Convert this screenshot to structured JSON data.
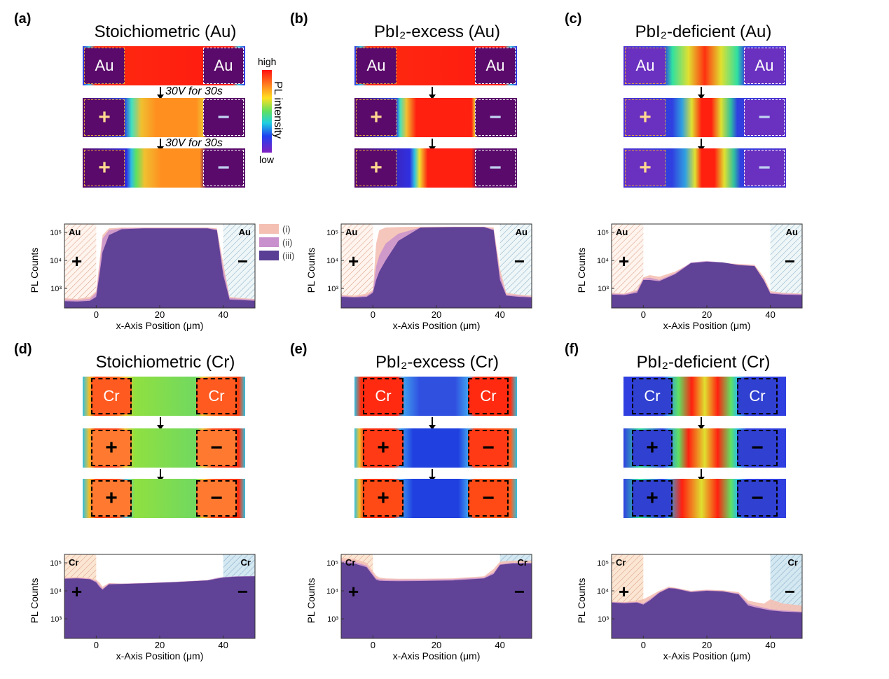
{
  "panels": [
    {
      "id": "a",
      "label": "(a)",
      "title": "Stoichiometric (Au)",
      "electrode": "Au",
      "type": "au",
      "profile": "stoich_au"
    },
    {
      "id": "b",
      "label": "(b)",
      "title": "PbI₂-excess (Au)",
      "electrode": "Au",
      "type": "au",
      "profile": "excess_au"
    },
    {
      "id": "c",
      "label": "(c)",
      "title": "PbI₂-deficient (Au)",
      "electrode": "Au",
      "type": "au",
      "profile": "def_au"
    },
    {
      "id": "d",
      "label": "(d)",
      "title": "Stoichiometric (Cr)",
      "electrode": "Cr",
      "type": "cr",
      "profile": "stoich_cr"
    },
    {
      "id": "e",
      "label": "(e)",
      "title": "PbI₂-excess (Cr)",
      "electrode": "Cr",
      "type": "cr",
      "profile": "excess_cr"
    },
    {
      "id": "f",
      "label": "(f)",
      "title": "PbI₂-deficient (Cr)",
      "electrode": "Cr",
      "type": "cr",
      "profile": "def_cr"
    }
  ],
  "bias_label": "30V for 30s",
  "symbols": {
    "plus": "+",
    "minus": "−"
  },
  "colorbar": {
    "high": "high",
    "low": "low",
    "title": "PL intensity"
  },
  "legend": [
    "(i)",
    "(ii)",
    "(iii)"
  ],
  "colors": {
    "series_i": "#f4c0b4",
    "series_ii": "#c890cc",
    "series_iii": "#5a3d94",
    "electrode_left_au": "#e0a040",
    "au_box": "#5a0a6a"
  },
  "chart_data": {
    "type": "area",
    "xlabel": "x-Axis Position (μm)",
    "ylabel": "PL Counts",
    "xlim": [
      -10,
      50
    ],
    "ylim": [
      200,
      200000
    ],
    "yscale": "log",
    "xticks": [
      0,
      20,
      40
    ],
    "yticks": [
      {
        "v": 1000,
        "t": "10³"
      },
      {
        "v": 10000,
        "t": "10⁴"
      },
      {
        "v": 100000,
        "t": "10⁵"
      }
    ],
    "electrode_regions": [
      [
        -10,
        0
      ],
      [
        40,
        50
      ]
    ],
    "profiles": {
      "stoich_au": {
        "x": [
          -10,
          -6,
          -2,
          0,
          1,
          2,
          4,
          8,
          15,
          25,
          35,
          38,
          40,
          42,
          46,
          50
        ],
        "i": [
          450,
          420,
          500,
          800,
          9000,
          80000,
          140000,
          150000,
          150000,
          150000,
          150000,
          140000,
          8000,
          500,
          450,
          420
        ],
        "ii": [
          400,
          380,
          420,
          700,
          5000,
          60000,
          120000,
          140000,
          145000,
          145000,
          145000,
          130000,
          5000,
          450,
          420,
          400
        ],
        "iii": [
          350,
          340,
          360,
          500,
          3000,
          20000,
          80000,
          130000,
          140000,
          140000,
          140000,
          120000,
          3000,
          400,
          380,
          360
        ]
      },
      "excess_au": {
        "x": [
          -10,
          -6,
          -2,
          0,
          1,
          2,
          4,
          8,
          15,
          25,
          35,
          38,
          40,
          42,
          46,
          50
        ],
        "i": [
          600,
          550,
          650,
          900,
          40000,
          120000,
          150000,
          155000,
          160000,
          160000,
          160000,
          150000,
          5000,
          700,
          600,
          550
        ],
        "ii": [
          550,
          500,
          550,
          800,
          6000,
          15000,
          40000,
          90000,
          150000,
          155000,
          155000,
          130000,
          3000,
          600,
          550,
          500
        ],
        "iii": [
          500,
          480,
          500,
          700,
          2000,
          4000,
          10000,
          50000,
          150000,
          155000,
          155000,
          120000,
          2000,
          550,
          500,
          480
        ]
      },
      "def_au": {
        "x": [
          -10,
          -6,
          -2,
          0,
          2,
          5,
          10,
          15,
          20,
          25,
          30,
          35,
          38,
          40,
          44,
          50
        ],
        "i": [
          700,
          650,
          900,
          2500,
          3000,
          2600,
          4000,
          8000,
          9000,
          8000,
          7500,
          7000,
          2500,
          800,
          700,
          650
        ],
        "ii": [
          650,
          620,
          800,
          2200,
          2400,
          2000,
          3500,
          8500,
          9500,
          8500,
          7000,
          6500,
          2000,
          700,
          650,
          620
        ],
        "iii": [
          600,
          580,
          700,
          2000,
          2000,
          1800,
          3200,
          8000,
          9000,
          8500,
          6800,
          6300,
          1900,
          650,
          600,
          580
        ]
      },
      "stoich_cr": {
        "x": [
          -10,
          -6,
          -2,
          0,
          1,
          2,
          4,
          8,
          15,
          25,
          35,
          38,
          40,
          44,
          50
        ],
        "i": [
          30000,
          31000,
          28000,
          25000,
          20000,
          14000,
          19000,
          18000,
          19000,
          21000,
          24000,
          28000,
          30000,
          32000,
          33000
        ],
        "ii": [
          28000,
          29000,
          27000,
          22000,
          16000,
          12000,
          18000,
          18000,
          19000,
          21000,
          24000,
          29000,
          31000,
          33000,
          34000
        ],
        "iii": [
          27000,
          28000,
          26000,
          20000,
          14000,
          11000,
          17000,
          17500,
          18500,
          20500,
          23500,
          27000,
          30000,
          32000,
          33000
        ]
      },
      "excess_cr": {
        "x": [
          -10,
          -6,
          -2,
          0,
          1,
          2,
          4,
          8,
          15,
          25,
          35,
          38,
          40,
          44,
          50
        ],
        "i": [
          150000,
          140000,
          100000,
          50000,
          35000,
          30000,
          28000,
          27000,
          27000,
          28000,
          33000,
          60000,
          110000,
          120000,
          120000
        ],
        "ii": [
          120000,
          110000,
          80000,
          40000,
          28000,
          26000,
          25000,
          24500,
          25000,
          26000,
          30000,
          45000,
          90000,
          100000,
          100000
        ],
        "iii": [
          100000,
          95000,
          70000,
          35000,
          25000,
          23000,
          22500,
          22000,
          22500,
          23500,
          28000,
          40000,
          85000,
          95000,
          95000
        ]
      },
      "def_cr": {
        "x": [
          -10,
          -6,
          -2,
          0,
          2,
          5,
          8,
          10,
          15,
          20,
          25,
          30,
          33,
          35,
          38,
          40,
          44,
          50
        ],
        "i": [
          4200,
          4000,
          4500,
          5000,
          6500,
          10000,
          14000,
          13000,
          10000,
          11000,
          10500,
          9000,
          4500,
          4000,
          3500,
          5000,
          3500,
          3000
        ],
        "ii": [
          4000,
          3800,
          4000,
          3500,
          5000,
          9000,
          13000,
          12500,
          9500,
          10500,
          9800,
          8000,
          3500,
          3000,
          2500,
          2200,
          2000,
          1800
        ],
        "iii": [
          3800,
          3600,
          3800,
          3200,
          4500,
          8500,
          12500,
          12000,
          9000,
          10000,
          9500,
          7500,
          3000,
          2600,
          2200,
          2000,
          1800,
          1700
        ]
      }
    }
  }
}
